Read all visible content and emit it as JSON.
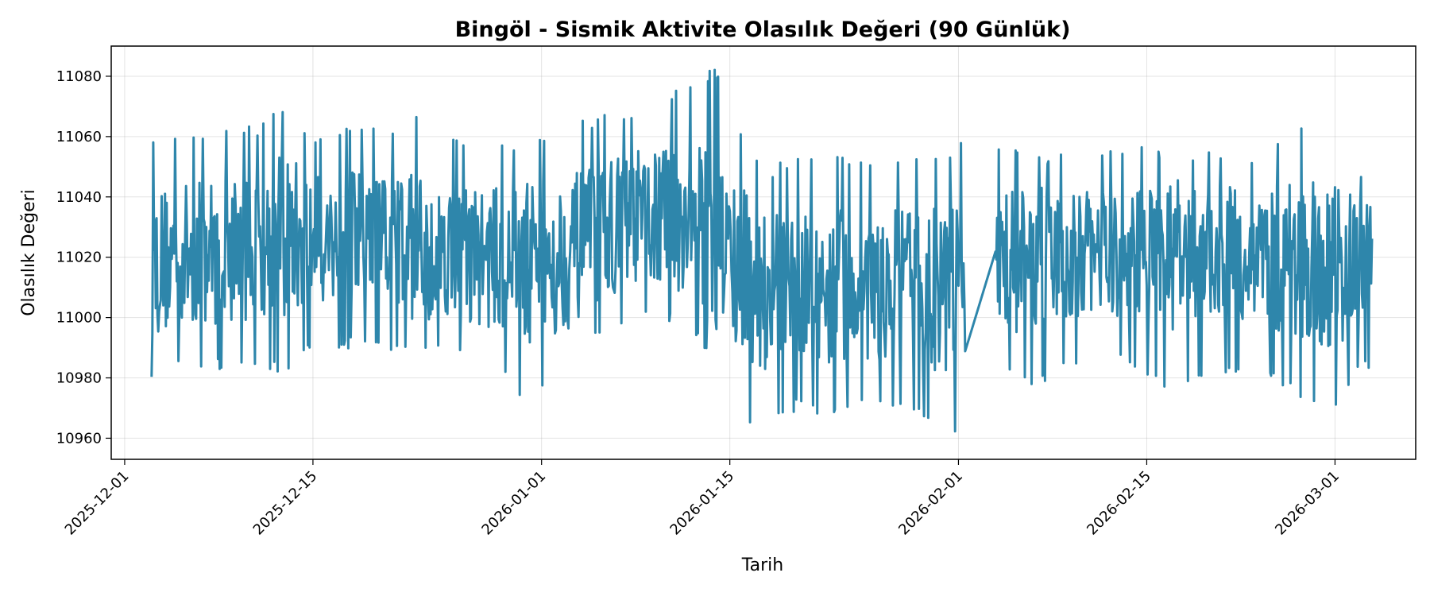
{
  "chart_data": {
    "type": "line",
    "title": "Bingöl - Sismik Aktivite Olasılık Değeri (90 Günlük)",
    "xlabel": "Tarih",
    "ylabel": "Olasılık Değeri",
    "x_range": [
      "2025-11-30",
      "2026-03-07"
    ],
    "ylim": [
      10953,
      11090
    ],
    "x_ticks": [
      "2025-12-01",
      "2025-12-15",
      "2026-01-01",
      "2026-01-15",
      "2026-02-01",
      "2026-02-15",
      "2026-03-01"
    ],
    "y_ticks": [
      10960,
      10980,
      11000,
      11020,
      11040,
      11060,
      11080
    ],
    "grid": true,
    "line_color": "#2e86ab",
    "series": [
      {
        "x": [
          "2025-12-03",
          "2025-12-05",
          "2025-12-07",
          "2025-12-09",
          "2025-12-11",
          "2025-12-13",
          "2025-12-15",
          "2025-12-17",
          "2025-12-19",
          "2025-12-21",
          "2025-12-23",
          "2025-12-25",
          "2025-12-27",
          "2025-12-29",
          "2025-12-31",
          "2026-01-02",
          "2026-01-04",
          "2026-01-06",
          "2026-01-08",
          "2026-01-10",
          "2026-01-12",
          "2026-01-14",
          "2026-01-16",
          "2026-01-18",
          "2026-01-20",
          "2026-01-22",
          "2026-01-24",
          "2026-01-26",
          "2026-01-28",
          "2026-01-30",
          "2026-02-01",
          "2026-02-03",
          "2026-02-05",
          "2026-02-07",
          "2026-02-09",
          "2026-02-11",
          "2026-02-13",
          "2026-02-15",
          "2026-02-17",
          "2026-02-19",
          "2026-02-21",
          "2026-02-23",
          "2026-02-25",
          "2026-02-27",
          "2026-03-01",
          "2026-03-03"
        ],
        "values": [
          11018,
          11020,
          11022,
          11024,
          11025,
          11027,
          11026,
          11027,
          11026,
          11025,
          11024,
          11023,
          11021,
          11019,
          11018,
          11020,
          11024,
          11030,
          11033,
          11034,
          11032,
          11026,
          11015,
          11008,
          11008,
          11009,
          11010,
          11011,
          11010,
          11009,
          11010,
          11018,
          11018,
          11019,
          11020,
          11021,
          11022,
          11021,
          11021,
          11020,
          11021,
          11020,
          11019,
          11018,
          11017,
          11018
        ],
        "lower": [
          10977,
          10985,
          10983,
          10982,
          10984,
          10981,
          10990,
          10989,
          10991,
          10988,
          10986,
          10988,
          10983,
          10982,
          10970,
          10977,
          10988,
          10995,
          10999,
          10998,
          10996,
          10984,
          10963,
          10967,
          10969,
          10967,
          10970,
          10968,
          10971,
          10963,
          10959,
          10985,
          10979,
          10976,
          10982,
          10988,
          10984,
          10981,
          10975,
          10980,
          10981,
          10982,
          10977,
          10971,
          10970,
          10982
        ],
        "upper": [
          11058,
          11062,
          11061,
          11066,
          11064,
          11072,
          11061,
          11062,
          11066,
          11064,
          11069,
          11060,
          11058,
          11059,
          11058,
          11064,
          11066,
          11068,
          11070,
          11074,
          11077,
          11084,
          11059,
          11050,
          11055,
          11054,
          11053,
          11052,
          11054,
          11054,
          11058,
          11057,
          11056,
          11054,
          11056,
          11055,
          11056,
          11057,
          11056,
          11056,
          11055,
          11054,
          11062,
          11063,
          11056,
          11050
        ]
      }
    ],
    "data_gap": [
      "2026-02-01",
      "2026-02-03"
    ]
  }
}
